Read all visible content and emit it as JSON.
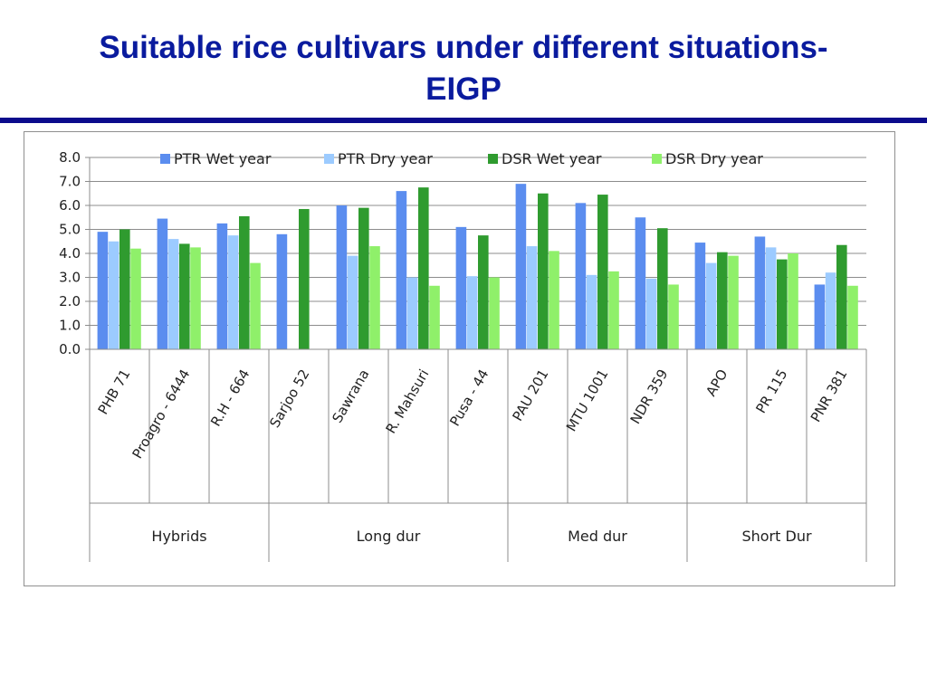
{
  "slide": {
    "title_line1": "Suitable rice cultivars under different situations-",
    "title_line2": "EIGP"
  },
  "colors": {
    "title": "#0a1b9e",
    "rule": "#0b0b8c",
    "series": [
      "#5b8def",
      "#9ccbff",
      "#2f9b2f",
      "#8ff06a"
    ]
  },
  "chart_data": {
    "type": "bar",
    "ylim": [
      0,
      8
    ],
    "yticks": [
      "0.0",
      "1.0",
      "2.0",
      "3.0",
      "4.0",
      "5.0",
      "6.0",
      "7.0",
      "8.0"
    ],
    "grid": true,
    "legend_position": "top",
    "categories": [
      "PHB 71",
      "Proagro - 6444",
      "R.H - 664",
      "Sarjoo 52",
      "Sawrana",
      "R. Mahsuri",
      "Pusa - 44",
      "PAU 201",
      "MTU 1001",
      "NDR  359",
      "APO",
      "PR 115",
      "PNR 381"
    ],
    "groups": [
      {
        "label": "Hybrids",
        "start": 0,
        "count": 3
      },
      {
        "label": "Long dur",
        "start": 3,
        "count": 4
      },
      {
        "label": "Med dur",
        "start": 7,
        "count": 3
      },
      {
        "label": "Short Dur",
        "start": 10,
        "count": 3
      }
    ],
    "series": [
      {
        "name": "PTR Wet year",
        "values": [
          4.9,
          5.45,
          5.25,
          4.8,
          6.0,
          6.6,
          5.1,
          6.9,
          6.1,
          5.5,
          4.45,
          4.7,
          2.7
        ]
      },
      {
        "name": "PTR Dry year",
        "values": [
          4.5,
          4.6,
          4.75,
          null,
          3.9,
          3.0,
          3.05,
          4.3,
          3.1,
          2.95,
          3.6,
          4.25,
          3.2
        ]
      },
      {
        "name": "DSR Wet year",
        "values": [
          5.0,
          4.4,
          5.55,
          5.85,
          5.9,
          6.75,
          4.75,
          6.5,
          6.45,
          5.05,
          4.05,
          3.75,
          4.35
        ]
      },
      {
        "name": "DSR Dry year",
        "values": [
          4.2,
          4.25,
          3.6,
          null,
          4.3,
          2.65,
          3.0,
          4.1,
          3.25,
          2.7,
          3.9,
          4.0,
          2.65
        ]
      }
    ]
  }
}
